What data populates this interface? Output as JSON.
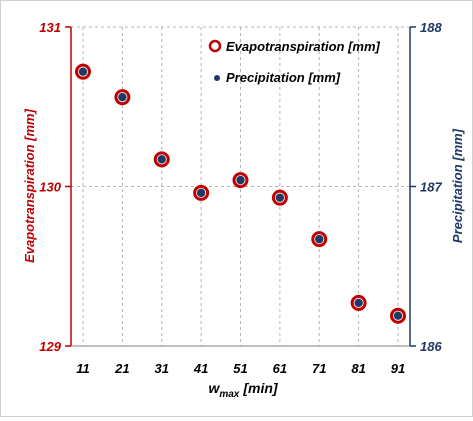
{
  "chart_data": {
    "type": "scatter",
    "title": "",
    "xlabel": {
      "main": "w",
      "sub": "max",
      "unit": "[min]"
    },
    "x": [
      11,
      21,
      31,
      41,
      51,
      61,
      71,
      81,
      91
    ],
    "xlim": [
      11,
      91
    ],
    "xticks": [
      "11",
      "21",
      "31",
      "41",
      "51",
      "61",
      "71",
      "81",
      "91"
    ],
    "grid": true,
    "legend_position": "top-right",
    "series": [
      {
        "name": "Evapotranspiration [mm]",
        "axis": "left",
        "marker": "hollow-circle",
        "color": "#c00000",
        "values": [
          130.72,
          130.56,
          130.17,
          129.96,
          130.04,
          129.93,
          129.67,
          129.27,
          129.19
        ]
      },
      {
        "name": "Precipitation [mm]",
        "axis": "right",
        "marker": "filled-circle",
        "color": "#1f3864",
        "values": [
          187.72,
          187.56,
          187.17,
          186.96,
          187.04,
          186.93,
          186.67,
          186.27,
          186.19
        ]
      }
    ],
    "y_left": {
      "label": "Evapotranspiration  [mm]",
      "range": [
        129,
        131
      ],
      "ticks": [
        "129",
        "130",
        "131"
      ],
      "color": "#c00000"
    },
    "y_right": {
      "label": "Precipitation [mm]",
      "range": [
        186,
        188
      ],
      "ticks": [
        "186",
        "187",
        "188"
      ],
      "color": "#1f3864"
    }
  }
}
